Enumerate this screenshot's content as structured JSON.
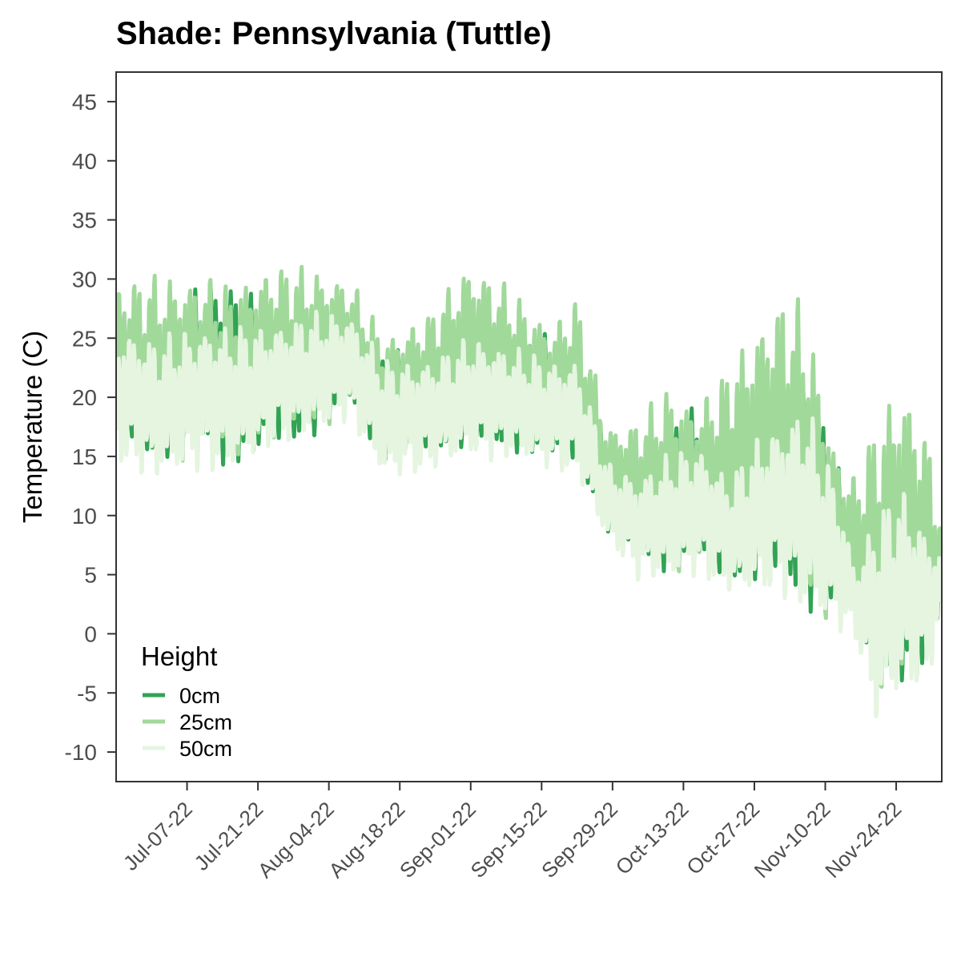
{
  "chart_data": {
    "type": "line",
    "title": "Shade: Pennsylvania (Tuttle)",
    "xlabel": "",
    "ylabel": "Temperature (C)",
    "x_ticks": [
      "Jul-07-22",
      "Jul-21-22",
      "Aug-04-22",
      "Aug-18-22",
      "Sep-01-22",
      "Sep-15-22",
      "Sep-29-22",
      "Oct-13-22",
      "Oct-27-22",
      "Nov-10-22",
      "Nov-24-22"
    ],
    "x_range": [
      "2022-06-23",
      "2022-12-03"
    ],
    "y_ticks": [
      45,
      40,
      35,
      30,
      25,
      20,
      15,
      10,
      5,
      0,
      -5,
      -10
    ],
    "ylim": [
      -12.5,
      47.5
    ],
    "grid": false,
    "legend": {
      "title": "Height",
      "position": "bottom-left-inside"
    },
    "series": [
      {
        "name": "0cm",
        "color": "#31a354",
        "envelope": {
          "x": [
            "2022-06-23",
            "2022-07-01",
            "2022-07-10",
            "2022-07-15",
            "2022-07-24",
            "2022-08-01",
            "2022-08-08",
            "2022-08-15",
            "2022-08-24",
            "2022-09-01",
            "2022-09-09",
            "2022-09-17",
            "2022-09-22",
            "2022-09-28",
            "2022-10-04",
            "2022-10-10",
            "2022-10-16",
            "2022-10-22",
            "2022-10-28",
            "2022-11-01",
            "2022-11-06",
            "2022-11-12",
            "2022-11-16",
            "2022-11-20",
            "2022-11-25",
            "2022-11-30",
            "2022-12-03"
          ],
          "high": [
            28,
            26,
            30.5,
            31.5,
            28.5,
            28,
            29,
            24.5,
            25,
            27,
            26,
            26,
            25,
            17,
            16,
            19,
            20,
            16,
            21,
            22,
            25,
            16,
            7,
            13,
            15,
            11,
            8
          ],
          "low": [
            16,
            14,
            15,
            13,
            15,
            16,
            19,
            14,
            15,
            15,
            15,
            14,
            14,
            8,
            6,
            4.5,
            5,
            4,
            3,
            3.5,
            1,
            0.5,
            1.5,
            -4,
            -6,
            -4,
            2
          ]
        }
      },
      {
        "name": "25cm",
        "color": "#a1d99b",
        "envelope": {
          "x": [
            "2022-06-23",
            "2022-07-01",
            "2022-07-10",
            "2022-07-15",
            "2022-07-24",
            "2022-08-01",
            "2022-08-08",
            "2022-08-15",
            "2022-08-24",
            "2022-09-01",
            "2022-09-09",
            "2022-09-17",
            "2022-09-22",
            "2022-09-28",
            "2022-10-04",
            "2022-10-10",
            "2022-10-16",
            "2022-10-22",
            "2022-10-28",
            "2022-11-01",
            "2022-11-06",
            "2022-11-12",
            "2022-11-16",
            "2022-11-20",
            "2022-11-25",
            "2022-11-30",
            "2022-12-03"
          ],
          "high": [
            31,
            31.5,
            31.5,
            30.5,
            32.5,
            32,
            31,
            26,
            28,
            33,
            30,
            27,
            29.5,
            18.5,
            19,
            22,
            20.5,
            24,
            28.5,
            30.5,
            29.5,
            17,
            14,
            20,
            24,
            19,
            10
          ],
          "low": [
            15,
            13,
            14,
            13,
            15,
            16,
            18,
            14,
            15,
            15,
            15,
            14,
            14,
            7.5,
            5.5,
            4,
            4.5,
            3.5,
            2.5,
            3,
            0.5,
            0,
            0,
            -8,
            -6,
            -5,
            2
          ]
        }
      },
      {
        "name": "50cm",
        "color": "#e5f5e0",
        "envelope": {
          "x": [
            "2022-06-23",
            "2022-07-01",
            "2022-07-10",
            "2022-07-15",
            "2022-07-24",
            "2022-08-01",
            "2022-08-08",
            "2022-08-15",
            "2022-08-24",
            "2022-09-01",
            "2022-09-09",
            "2022-09-17",
            "2022-09-22",
            "2022-09-28",
            "2022-10-04",
            "2022-10-10",
            "2022-10-16",
            "2022-10-22",
            "2022-10-28",
            "2022-11-01",
            "2022-11-06",
            "2022-11-12",
            "2022-11-16",
            "2022-11-20",
            "2022-11-25",
            "2022-11-30",
            "2022-12-03"
          ],
          "high": [
            27,
            26,
            27,
            27,
            27,
            28,
            28,
            24,
            24,
            26,
            25,
            24,
            24,
            15,
            14,
            16,
            17,
            14,
            18,
            19,
            21,
            14,
            6,
            12,
            14,
            10,
            7
          ],
          "low": [
            13.5,
            12,
            13,
            12.5,
            15,
            16,
            17.5,
            12,
            13,
            14,
            14,
            13,
            12.5,
            7,
            4,
            3.5,
            4,
            2.5,
            2,
            2.5,
            0,
            -0.5,
            -1,
            -9.5,
            -6.5,
            -5.5,
            1
          ]
        }
      }
    ]
  }
}
